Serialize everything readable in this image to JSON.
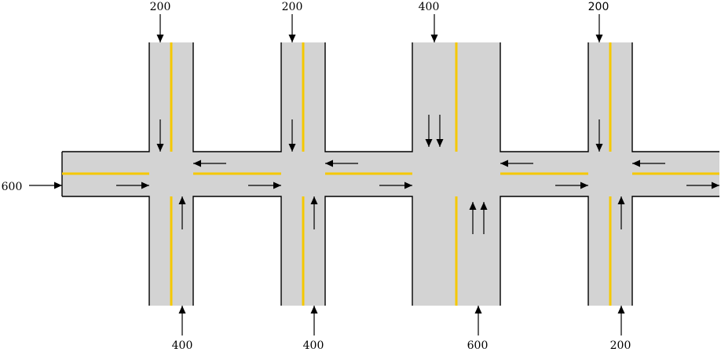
{
  "flows": {
    "top": [
      "200",
      "200",
      "400",
      "200"
    ],
    "bottom": [
      "400",
      "400",
      "600",
      "200"
    ],
    "left": "600"
  },
  "colors": {
    "road": "#d3d3d3",
    "center_line": "#f5c800",
    "edge": "#000000",
    "arrow": "#000000"
  }
}
